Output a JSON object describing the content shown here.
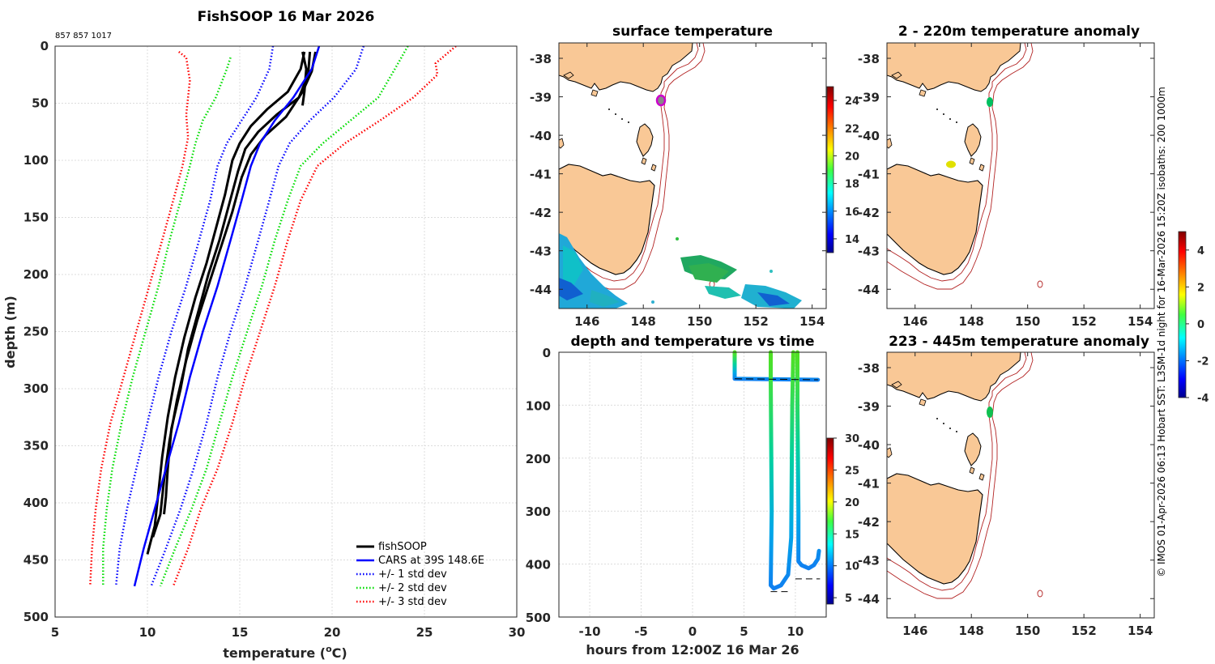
{
  "header": {
    "title": "FishSOOP 16 Mar 2026",
    "ids": "857 857 1017"
  },
  "credit": "© IMOS 01-Apr-2026 06:13 Hobart SST: L3SM-1d night for 16-Mar-2026 15:20Z isobaths: 200  1000m",
  "colors": {
    "fishsoop": "#000000",
    "cars": "#0000ff",
    "std1": "#0000ff",
    "std2": "#00dd00",
    "std3": "#ff0000",
    "land": "#f9c896",
    "coast": "#000000",
    "isobath": "#b22222",
    "grid": "#d9d9d9"
  },
  "chart_data": [
    {
      "id": "profile",
      "type": "line",
      "title": "FishSOOP 16 Mar 2026",
      "xlabel": "temperature (°C)",
      "ylabel": "depth (m)",
      "xlim": [
        5,
        30
      ],
      "ylim": [
        0,
        500
      ],
      "y_reversed": true,
      "xticks": [
        5,
        10,
        15,
        20,
        25,
        30
      ],
      "yticks": [
        0,
        50,
        100,
        150,
        200,
        250,
        300,
        350,
        400,
        450,
        500
      ],
      "grid": true,
      "legend_position": "bottom-right",
      "legend": [
        "fishSOOP",
        "CARS at 39S 148.6E",
        "+/- 1 std dev",
        "+/- 2 std dev",
        "+/- 3 std dev"
      ],
      "series": [
        {
          "name": "fishSOOP",
          "style": "solid-thick",
          "color": "#000000",
          "points": [
            [
              18.5,
              5
            ],
            [
              18.3,
              20
            ],
            [
              17.6,
              40
            ],
            [
              16.5,
              55
            ],
            [
              15.6,
              70
            ],
            [
              15.0,
              85
            ],
            [
              14.6,
              100
            ],
            [
              14.2,
              130
            ],
            [
              13.7,
              160
            ],
            [
              13.2,
              190
            ],
            [
              12.6,
              220
            ],
            [
              12.0,
              255
            ],
            [
              11.5,
              290
            ],
            [
              11.1,
              325
            ],
            [
              10.8,
              360
            ],
            [
              10.6,
              390
            ],
            [
              10.4,
              420
            ],
            [
              10.0,
              445
            ]
          ]
        },
        {
          "name": "fishSOOP",
          "style": "solid-thick",
          "color": "#000000",
          "points": [
            [
              18.8,
              5
            ],
            [
              18.7,
              25
            ],
            [
              18.2,
              45
            ],
            [
              17.0,
              60
            ],
            [
              16.0,
              75
            ],
            [
              15.3,
              90
            ],
            [
              14.9,
              110
            ],
            [
              14.4,
              140
            ],
            [
              13.9,
              170
            ],
            [
              13.3,
              200
            ],
            [
              12.8,
              230
            ],
            [
              12.2,
              265
            ],
            [
              11.8,
              300
            ],
            [
              11.3,
              335
            ],
            [
              11.1,
              370
            ],
            [
              11.0,
              395
            ],
            [
              10.9,
              410
            ]
          ]
        },
        {
          "name": "fishSOOP",
          "style": "solid-thick",
          "color": "#000000",
          "points": [
            [
              19.1,
              5
            ],
            [
              18.9,
              22
            ],
            [
              18.4,
              40
            ],
            [
              17.5,
              62
            ],
            [
              16.4,
              78
            ],
            [
              15.6,
              95
            ],
            [
              15.1,
              115
            ],
            [
              14.6,
              145
            ],
            [
              14.0,
              175
            ],
            [
              13.4,
              205
            ],
            [
              12.7,
              240
            ],
            [
              12.1,
              275
            ],
            [
              11.6,
              310
            ],
            [
              11.2,
              345
            ],
            [
              10.9,
              380
            ],
            [
              10.7,
              410
            ],
            [
              10.3,
              430
            ]
          ]
        },
        {
          "name": "fishSOOP",
          "style": "solid-thick",
          "color": "#000000",
          "points": [
            [
              18.4,
              5
            ],
            [
              18.6,
              20
            ],
            [
              18.5,
              40
            ],
            [
              18.4,
              52
            ]
          ]
        },
        {
          "name": "CARS at 39S 148.6E",
          "style": "solid",
          "color": "#0000ff",
          "points": [
            [
              19.3,
              0
            ],
            [
              18.9,
              20
            ],
            [
              17.9,
              45
            ],
            [
              16.9,
              65
            ],
            [
              16.1,
              85
            ],
            [
              15.6,
              105
            ],
            [
              15.1,
              135
            ],
            [
              14.5,
              170
            ],
            [
              13.8,
              210
            ],
            [
              13.0,
              250
            ],
            [
              12.3,
              290
            ],
            [
              11.7,
              330
            ],
            [
              11.0,
              370
            ],
            [
              10.4,
              405
            ],
            [
              9.8,
              440
            ],
            [
              9.3,
              473
            ]
          ]
        },
        {
          "name": "+/- 1 std dev",
          "style": "dotted",
          "color": "#0000ff",
          "points": [
            [
              16.8,
              0
            ],
            [
              16.6,
              20
            ],
            [
              15.9,
              45
            ],
            [
              15.1,
              65
            ],
            [
              14.3,
              85
            ],
            [
              13.8,
              105
            ],
            [
              13.4,
              135
            ],
            [
              12.8,
              170
            ],
            [
              12.1,
              210
            ],
            [
              11.3,
              250
            ],
            [
              10.6,
              290
            ],
            [
              10.0,
              330
            ],
            [
              9.4,
              370
            ],
            [
              8.9,
              405
            ],
            [
              8.5,
              440
            ],
            [
              8.3,
              473
            ]
          ]
        },
        {
          "name": "+/- 1 std dev",
          "style": "dotted",
          "color": "#0000ff",
          "points": [
            [
              21.7,
              0
            ],
            [
              21.3,
              20
            ],
            [
              20.1,
              45
            ],
            [
              18.8,
              65
            ],
            [
              17.7,
              85
            ],
            [
              17.1,
              105
            ],
            [
              16.6,
              135
            ],
            [
              16.0,
              170
            ],
            [
              15.3,
              210
            ],
            [
              14.5,
              250
            ],
            [
              13.8,
              290
            ],
            [
              13.2,
              330
            ],
            [
              12.5,
              370
            ],
            [
              11.8,
              405
            ],
            [
              11.0,
              440
            ],
            [
              10.2,
              473
            ]
          ]
        },
        {
          "name": "+/- 2 std dev",
          "style": "dotted",
          "color": "#00dd00",
          "points": [
            [
              14.5,
              10
            ],
            [
              14.3,
              20
            ],
            [
              13.7,
              45
            ],
            [
              13.0,
              65
            ],
            [
              12.6,
              85
            ],
            [
              12.3,
              105
            ],
            [
              11.8,
              135
            ],
            [
              11.2,
              170
            ],
            [
              10.6,
              210
            ],
            [
              9.9,
              250
            ],
            [
              9.2,
              290
            ],
            [
              8.6,
              330
            ],
            [
              8.1,
              370
            ],
            [
              7.8,
              405
            ],
            [
              7.6,
              440
            ],
            [
              7.6,
              473
            ]
          ]
        },
        {
          "name": "+/- 2 std dev",
          "style": "dotted",
          "color": "#00dd00",
          "points": [
            [
              24.1,
              0
            ],
            [
              23.4,
              20
            ],
            [
              22.5,
              45
            ],
            [
              21.0,
              65
            ],
            [
              19.5,
              85
            ],
            [
              18.3,
              105
            ],
            [
              17.6,
              135
            ],
            [
              16.9,
              170
            ],
            [
              16.2,
              210
            ],
            [
              15.4,
              250
            ],
            [
              14.6,
              290
            ],
            [
              13.9,
              330
            ],
            [
              13.2,
              370
            ],
            [
              12.4,
              405
            ],
            [
              11.5,
              440
            ],
            [
              10.7,
              473
            ]
          ]
        },
        {
          "name": "+/- 3 std dev",
          "style": "dotted",
          "color": "#ff0000",
          "points": [
            [
              11.7,
              5
            ],
            [
              12.1,
              10
            ],
            [
              12.3,
              30
            ],
            [
              12.1,
              60
            ],
            [
              12.2,
              80
            ],
            [
              11.9,
              105
            ],
            [
              11.4,
              135
            ],
            [
              10.8,
              170
            ],
            [
              10.1,
              210
            ],
            [
              9.4,
              250
            ],
            [
              8.7,
              290
            ],
            [
              8.0,
              330
            ],
            [
              7.5,
              370
            ],
            [
              7.2,
              405
            ],
            [
              7.0,
              440
            ],
            [
              6.9,
              473
            ]
          ]
        },
        {
          "name": "+/- 3 std dev",
          "style": "dotted",
          "color": "#ff0000",
          "points": [
            [
              26.7,
              0
            ],
            [
              25.6,
              15
            ],
            [
              25.7,
              25
            ],
            [
              24.4,
              45
            ],
            [
              22.6,
              65
            ],
            [
              20.7,
              85
            ],
            [
              19.2,
              105
            ],
            [
              18.3,
              135
            ],
            [
              17.6,
              170
            ],
            [
              16.9,
              210
            ],
            [
              16.1,
              250
            ],
            [
              15.3,
              290
            ],
            [
              14.6,
              330
            ],
            [
              13.8,
              370
            ],
            [
              12.9,
              405
            ],
            [
              12.2,
              440
            ],
            [
              11.4,
              473
            ]
          ]
        }
      ]
    },
    {
      "id": "sst-map",
      "type": "heatmap",
      "title": "surface temperature",
      "xlim": [
        145,
        154.5
      ],
      "ylim": [
        -44.5,
        -37.6
      ],
      "xticks": [
        146,
        148,
        150,
        152,
        154
      ],
      "yticks": [
        -38,
        -39,
        -40,
        -41,
        -42,
        -43,
        -44
      ],
      "colorbar": {
        "min": 13,
        "max": 25,
        "ticks": [
          14,
          16,
          18,
          20,
          22,
          24
        ]
      },
      "markers": [
        {
          "lon": 148.6,
          "lat": -39.05,
          "color": "#cc00cc"
        }
      ]
    },
    {
      "id": "anom-shallow",
      "type": "heatmap",
      "title": "2 - 220m temperature anomaly",
      "xlim": [
        145,
        154.5
      ],
      "ylim": [
        -44.5,
        -37.6
      ],
      "xticks": [
        146,
        148,
        150,
        152,
        154
      ],
      "yticks": [
        -38,
        -39,
        -40,
        -41,
        -42,
        -43,
        -44
      ],
      "colorbar": {
        "min": -4,
        "max": 5,
        "ticks": [
          -4,
          -2,
          0,
          2,
          4
        ]
      },
      "markers": [
        {
          "lon": 148.65,
          "lat": -39.1,
          "color": "#00c060"
        },
        {
          "lon": 147.2,
          "lat": -40.75,
          "color": "#e0e000"
        }
      ]
    },
    {
      "id": "anom-deep",
      "type": "heatmap",
      "title": "223 - 445m temperature anomaly",
      "xlim": [
        145,
        154.5
      ],
      "ylim": [
        -44.5,
        -37.6
      ],
      "xticks": [
        146,
        148,
        150,
        152,
        154
      ],
      "yticks": [
        -38,
        -39,
        -40,
        -41,
        -42,
        -43,
        -44
      ],
      "markers": [
        {
          "lon": 148.65,
          "lat": -39.1,
          "color": "#10c050"
        }
      ]
    },
    {
      "id": "time-depth",
      "type": "scatter",
      "title": "depth and temperature vs time",
      "xlabel": "hours from 12:00Z 16 Mar 26",
      "xlim": [
        -13,
        13
      ],
      "ylim": [
        0,
        500
      ],
      "y_reversed": true,
      "xticks": [
        -10,
        -5,
        0,
        5,
        10
      ],
      "yticks": [
        0,
        100,
        200,
        300,
        400,
        500
      ],
      "colorbar": {
        "min": 4,
        "max": 30,
        "ticks": [
          5,
          10,
          15,
          20,
          25,
          30
        ]
      },
      "tracks": [
        {
          "points": [
            [
              4.1,
              0
            ],
            [
              4.1,
              50
            ],
            [
              12.2,
              52
            ]
          ]
        },
        {
          "points": [
            [
              7.6,
              0
            ],
            [
              7.6,
              50
            ],
            [
              7.7,
              300
            ],
            [
              7.6,
              440
            ],
            [
              7.9,
              446
            ],
            [
              8.6,
              440
            ],
            [
              9.3,
              420
            ],
            [
              9.6,
              350
            ],
            [
              9.7,
              100
            ],
            [
              9.8,
              0
            ]
          ]
        },
        {
          "points": [
            [
              10.2,
              0
            ],
            [
              10.2,
              100
            ],
            [
              10.3,
              300
            ],
            [
              10.3,
              395
            ],
            [
              10.6,
              402
            ],
            [
              11.3,
              408
            ],
            [
              11.8,
              402
            ],
            [
              12.2,
              390
            ],
            [
              12.3,
              375
            ]
          ]
        }
      ],
      "bottom_marks": [
        {
          "x0": 7.6,
          "x1": 9.6,
          "depth": 452
        },
        {
          "x0": 10.0,
          "x1": 12.4,
          "depth": 428
        }
      ]
    }
  ]
}
